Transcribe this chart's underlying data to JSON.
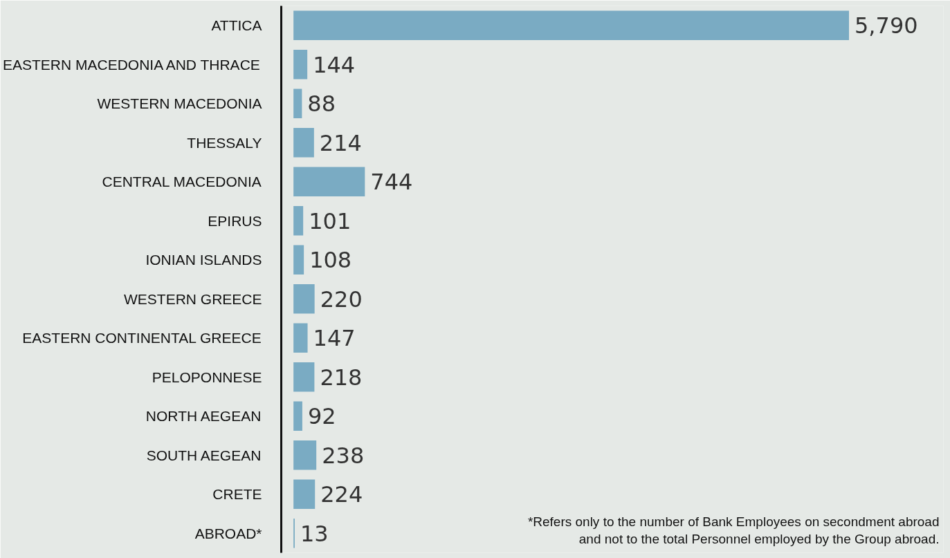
{
  "chart_data": {
    "type": "bar",
    "orientation": "horizontal",
    "categories": [
      "ATTICA",
      "EASTERN MACEDONIA AND THRACE",
      "WESTERN MACEDONIA",
      "THESSALY",
      "CENTRAL MACEDONIA",
      "EPIRUS",
      "IONIAN ISLANDS",
      "WESTERN GREECE",
      "EASTERN CONTINENTAL GREECE",
      "PELOPONNESE",
      "NORTH AEGEAN",
      "SOUTH AEGEAN",
      "CRETE",
      "ABROAD*"
    ],
    "values": [
      5790,
      144,
      88,
      214,
      744,
      101,
      108,
      220,
      147,
      218,
      92,
      238,
      224,
      13
    ],
    "value_labels": [
      "5,790",
      "144",
      "88",
      "214",
      "744",
      "101",
      "108",
      "220",
      "147",
      "218",
      "92",
      "238",
      "224",
      "13"
    ],
    "color": "#7aabc3",
    "annotations": [
      "*Refers only to the number of Bank Employees on secondment abroad and not to the total Personnel employed by the Group abroad."
    ]
  }
}
